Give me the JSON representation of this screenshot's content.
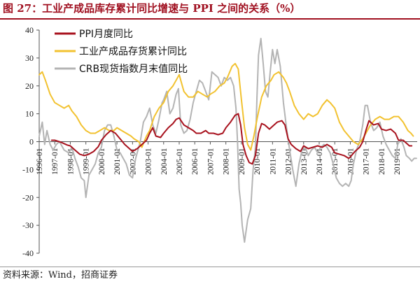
{
  "figure": {
    "title": "图 27：工业产成品库存累计同比增速与 PPI 之间的关系（%）",
    "source": "资料来源：Wind，招商证券"
  },
  "colors": {
    "title": "#a01020",
    "ppi": "#a8121e",
    "inventory": "#f2c230",
    "crb": "#b4b4b4"
  },
  "chart_data": {
    "type": "line",
    "title": "",
    "xlabel": "",
    "ylabel": "",
    "ylim": [
      -40,
      40
    ],
    "yticks": [
      -40,
      -30,
      -20,
      -10,
      0,
      10,
      20,
      30,
      40
    ],
    "xlim": [
      1996.0,
      2020.3
    ],
    "xtick_labels": [
      "1996-01",
      "1997-01",
      "1998-01",
      "1999-01",
      "2000-01",
      "2001-01",
      "2002-01",
      "2003-01",
      "2004-01",
      "2005-01",
      "2006-01",
      "2007-01",
      "2008-01",
      "2009-01",
      "2010-01",
      "2011-01",
      "2012-01",
      "2013-01",
      "2014-01",
      "2015-01",
      "2016-01",
      "2017-01",
      "2018-01",
      "2019-01"
    ],
    "grid": false,
    "legend_position": "top-left",
    "series": [
      {
        "name": "PPI月度同比",
        "points": [
          [
            1996.8,
            0.5
          ],
          [
            1997.0,
            0.5
          ],
          [
            1997.4,
            -0.2
          ],
          [
            1997.8,
            -1.2
          ],
          [
            1998.0,
            -1.5
          ],
          [
            1998.3,
            -3
          ],
          [
            1998.6,
            -4.5
          ],
          [
            1998.9,
            -5
          ],
          [
            1999.2,
            -4.5
          ],
          [
            1999.5,
            -3.5
          ],
          [
            1999.8,
            -1.8
          ],
          [
            2000.0,
            0.5
          ],
          [
            2000.3,
            2.5
          ],
          [
            2000.6,
            4
          ],
          [
            2000.9,
            3
          ],
          [
            2001.2,
            1
          ],
          [
            2001.5,
            -1
          ],
          [
            2001.8,
            -2.5
          ],
          [
            2002.0,
            -3.5
          ],
          [
            2002.3,
            -2.5
          ],
          [
            2002.6,
            -1
          ],
          [
            2002.9,
            0.5
          ],
          [
            2003.1,
            3
          ],
          [
            2003.3,
            5
          ],
          [
            2003.5,
            2
          ],
          [
            2003.8,
            1.5
          ],
          [
            2004.0,
            3
          ],
          [
            2004.3,
            5
          ],
          [
            2004.6,
            6.5
          ],
          [
            2004.8,
            8
          ],
          [
            2005.0,
            8.5
          ],
          [
            2005.3,
            6
          ],
          [
            2005.6,
            5
          ],
          [
            2005.9,
            4
          ],
          [
            2006.1,
            3
          ],
          [
            2006.4,
            3
          ],
          [
            2006.7,
            4
          ],
          [
            2006.9,
            3
          ],
          [
            2007.2,
            3
          ],
          [
            2007.5,
            2.5
          ],
          [
            2007.8,
            3
          ],
          [
            2008.0,
            5
          ],
          [
            2008.3,
            7
          ],
          [
            2008.6,
            9.5
          ],
          [
            2008.8,
            10
          ],
          [
            2008.95,
            6
          ],
          [
            2009.1,
            -1
          ],
          [
            2009.3,
            -5
          ],
          [
            2009.5,
            -7.5
          ],
          [
            2009.7,
            -8
          ],
          [
            2009.9,
            -5
          ],
          [
            2010.1,
            3
          ],
          [
            2010.3,
            6.5
          ],
          [
            2010.5,
            6
          ],
          [
            2010.8,
            4.5
          ],
          [
            2011.0,
            5.5
          ],
          [
            2011.3,
            7
          ],
          [
            2011.6,
            7.5
          ],
          [
            2011.8,
            6
          ],
          [
            2012.0,
            1
          ],
          [
            2012.2,
            -1
          ],
          [
            2012.5,
            -2.5
          ],
          [
            2012.8,
            -3.5
          ],
          [
            2013.0,
            -1.5
          ],
          [
            2013.3,
            -2.5
          ],
          [
            2013.6,
            -2
          ],
          [
            2013.9,
            -1.5
          ],
          [
            2014.2,
            -2
          ],
          [
            2014.5,
            -1
          ],
          [
            2014.8,
            -2
          ],
          [
            2015.0,
            -4
          ],
          [
            2015.3,
            -4.5
          ],
          [
            2015.6,
            -5
          ],
          [
            2015.9,
            -6
          ],
          [
            2016.0,
            -5.5
          ],
          [
            2016.3,
            -3.5
          ],
          [
            2016.6,
            -2
          ],
          [
            2016.8,
            0
          ],
          [
            2017.0,
            4
          ],
          [
            2017.2,
            7.5
          ],
          [
            2017.5,
            6
          ],
          [
            2017.8,
            6.5
          ],
          [
            2018.0,
            4.5
          ],
          [
            2018.3,
            4
          ],
          [
            2018.6,
            4.5
          ],
          [
            2018.9,
            3
          ],
          [
            2019.1,
            0.5
          ],
          [
            2019.4,
            0.5
          ],
          [
            2019.6,
            -0.5
          ],
          [
            2019.8,
            -1.5
          ],
          [
            2019.95,
            -1.5
          ]
        ]
      },
      {
        "name": "工业产成品存货累计同比",
        "points": [
          [
            1996.0,
            24
          ],
          [
            1996.2,
            25
          ],
          [
            1996.4,
            22
          ],
          [
            1996.7,
            17
          ],
          [
            1997.0,
            14
          ],
          [
            1997.3,
            13
          ],
          [
            1997.6,
            12
          ],
          [
            1997.9,
            13
          ],
          [
            1998.1,
            11
          ],
          [
            1998.4,
            9
          ],
          [
            1998.7,
            6
          ],
          [
            1999.0,
            4
          ],
          [
            1999.3,
            3
          ],
          [
            1999.6,
            3
          ],
          [
            1999.9,
            4
          ],
          [
            2000.2,
            5
          ],
          [
            2000.5,
            4
          ],
          [
            2000.8,
            4
          ],
          [
            2001.0,
            5
          ],
          [
            2001.3,
            4
          ],
          [
            2001.6,
            3
          ],
          [
            2001.9,
            2
          ],
          [
            2002.1,
            1
          ],
          [
            2002.4,
            0
          ],
          [
            2002.6,
            -2
          ],
          [
            2002.9,
            2
          ],
          [
            2003.1,
            4
          ],
          [
            2003.4,
            9
          ],
          [
            2003.7,
            12
          ],
          [
            2004.0,
            14
          ],
          [
            2004.3,
            18
          ],
          [
            2004.6,
            20
          ],
          [
            2004.9,
            23
          ],
          [
            2005.0,
            24
          ],
          [
            2005.3,
            18
          ],
          [
            2005.6,
            16
          ],
          [
            2005.9,
            16
          ],
          [
            2006.2,
            18
          ],
          [
            2006.5,
            17
          ],
          [
            2006.8,
            16
          ],
          [
            2007.0,
            17
          ],
          [
            2007.3,
            18
          ],
          [
            2007.6,
            20
          ],
          [
            2007.9,
            21
          ],
          [
            2008.1,
            23
          ],
          [
            2008.4,
            27
          ],
          [
            2008.6,
            28
          ],
          [
            2008.8,
            26
          ],
          [
            2009.0,
            15
          ],
          [
            2009.2,
            5
          ],
          [
            2009.4,
            -1
          ],
          [
            2009.6,
            -3
          ],
          [
            2009.8,
            2
          ],
          [
            2010.0,
            8
          ],
          [
            2010.3,
            16
          ],
          [
            2010.6,
            20
          ],
          [
            2010.9,
            22
          ],
          [
            2011.1,
            24
          ],
          [
            2011.4,
            25
          ],
          [
            2011.7,
            23
          ],
          [
            2011.9,
            21
          ],
          [
            2012.1,
            18
          ],
          [
            2012.4,
            13
          ],
          [
            2012.7,
            10
          ],
          [
            2013.0,
            8
          ],
          [
            2013.3,
            10
          ],
          [
            2013.6,
            9
          ],
          [
            2013.9,
            10
          ],
          [
            2014.2,
            13
          ],
          [
            2014.5,
            15
          ],
          [
            2014.7,
            14
          ],
          [
            2015.0,
            12
          ],
          [
            2015.3,
            7
          ],
          [
            2015.6,
            4
          ],
          [
            2015.9,
            2
          ],
          [
            2016.2,
            0
          ],
          [
            2016.5,
            -1
          ],
          [
            2016.8,
            1
          ],
          [
            2017.0,
            3
          ],
          [
            2017.3,
            6
          ],
          [
            2017.6,
            8
          ],
          [
            2017.9,
            9
          ],
          [
            2018.2,
            8
          ],
          [
            2018.5,
            8
          ],
          [
            2018.8,
            9
          ],
          [
            2019.1,
            9
          ],
          [
            2019.4,
            7
          ],
          [
            2019.7,
            4
          ],
          [
            2019.9,
            3
          ],
          [
            2020.05,
            2
          ]
        ]
      },
      {
        "name": "CRB现货指数月末值同比",
        "points": [
          [
            1996.0,
            2
          ],
          [
            1996.2,
            7
          ],
          [
            1996.35,
            -1
          ],
          [
            1996.5,
            4
          ],
          [
            1996.7,
            -1
          ],
          [
            1996.9,
            -3
          ],
          [
            1997.1,
            -1
          ],
          [
            1997.3,
            0
          ],
          [
            1997.6,
            -3
          ],
          [
            1997.9,
            -4
          ],
          [
            1998.1,
            -2
          ],
          [
            1998.3,
            -6
          ],
          [
            1998.5,
            -9
          ],
          [
            1998.7,
            -13
          ],
          [
            1998.9,
            -14
          ],
          [
            1999.0,
            -20
          ],
          [
            1999.2,
            -12
          ],
          [
            1999.4,
            -10
          ],
          [
            1999.6,
            -8
          ],
          [
            1999.8,
            -4
          ],
          [
            2000.0,
            -2
          ],
          [
            2000.2,
            4
          ],
          [
            2000.4,
            6
          ],
          [
            2000.6,
            6
          ],
          [
            2000.8,
            2
          ],
          [
            2001.0,
            -3
          ],
          [
            2001.2,
            -4
          ],
          [
            2001.4,
            -6
          ],
          [
            2001.6,
            -8
          ],
          [
            2001.8,
            -12
          ],
          [
            2002.0,
            -13
          ],
          [
            2002.2,
            -6
          ],
          [
            2002.5,
            0
          ],
          [
            2002.7,
            7
          ],
          [
            2002.9,
            9
          ],
          [
            2003.1,
            12
          ],
          [
            2003.3,
            6
          ],
          [
            2003.5,
            3
          ],
          [
            2003.7,
            8
          ],
          [
            2003.9,
            14
          ],
          [
            2004.0,
            15
          ],
          [
            2004.2,
            18
          ],
          [
            2004.4,
            10
          ],
          [
            2004.6,
            12
          ],
          [
            2004.8,
            17
          ],
          [
            2004.95,
            19
          ],
          [
            2005.1,
            6
          ],
          [
            2005.3,
            3
          ],
          [
            2005.5,
            4
          ],
          [
            2005.7,
            8
          ],
          [
            2005.9,
            14
          ],
          [
            2006.1,
            18
          ],
          [
            2006.3,
            22
          ],
          [
            2006.5,
            21
          ],
          [
            2006.7,
            18
          ],
          [
            2006.9,
            15
          ],
          [
            2007.1,
            25
          ],
          [
            2007.3,
            24
          ],
          [
            2007.5,
            23
          ],
          [
            2007.7,
            20
          ],
          [
            2007.9,
            23
          ],
          [
            2008.1,
            22
          ],
          [
            2008.3,
            23
          ],
          [
            2008.5,
            20
          ],
          [
            2008.65,
            12
          ],
          [
            2008.75,
            0
          ],
          [
            2008.85,
            -17
          ],
          [
            2008.95,
            -22
          ],
          [
            2009.05,
            -30
          ],
          [
            2009.2,
            -36
          ],
          [
            2009.4,
            -28
          ],
          [
            2009.6,
            -24
          ],
          [
            2009.75,
            -10
          ],
          [
            2009.9,
            -2
          ],
          [
            2010.0,
            16
          ],
          [
            2010.1,
            31
          ],
          [
            2010.25,
            37
          ],
          [
            2010.4,
            28
          ],
          [
            2010.55,
            18
          ],
          [
            2010.7,
            16
          ],
          [
            2010.85,
            25
          ],
          [
            2011.0,
            33
          ],
          [
            2011.15,
            28
          ],
          [
            2011.3,
            33
          ],
          [
            2011.5,
            27
          ],
          [
            2011.7,
            14
          ],
          [
            2011.9,
            5
          ],
          [
            2012.1,
            -3
          ],
          [
            2012.3,
            -10
          ],
          [
            2012.5,
            -16
          ],
          [
            2012.7,
            -8
          ],
          [
            2012.9,
            -3
          ],
          [
            2013.1,
            -2
          ],
          [
            2013.3,
            -5
          ],
          [
            2013.5,
            -3
          ],
          [
            2013.7,
            -2
          ],
          [
            2013.9,
            -4
          ],
          [
            2014.1,
            -2
          ],
          [
            2014.3,
            -1
          ],
          [
            2014.5,
            -2
          ],
          [
            2014.7,
            -4
          ],
          [
            2014.9,
            -8
          ],
          [
            2015.1,
            -13
          ],
          [
            2015.3,
            -15
          ],
          [
            2015.5,
            -16
          ],
          [
            2015.7,
            -15
          ],
          [
            2015.9,
            -16
          ],
          [
            2016.05,
            -14
          ],
          [
            2016.2,
            -8
          ],
          [
            2016.4,
            -3
          ],
          [
            2016.6,
            0
          ],
          [
            2016.8,
            6
          ],
          [
            2016.95,
            13
          ],
          [
            2017.1,
            13
          ],
          [
            2017.3,
            7
          ],
          [
            2017.5,
            4
          ],
          [
            2017.7,
            5
          ],
          [
            2017.9,
            7
          ],
          [
            2018.1,
            2
          ],
          [
            2018.3,
            -1
          ],
          [
            2018.5,
            -3
          ],
          [
            2018.7,
            -5
          ],
          [
            2018.9,
            -6
          ],
          [
            2019.05,
            -1
          ],
          [
            2019.25,
            1
          ],
          [
            2019.45,
            -2
          ],
          [
            2019.6,
            -5
          ],
          [
            2019.8,
            -6
          ],
          [
            2019.95,
            -7
          ],
          [
            2020.1,
            -6
          ],
          [
            2020.25,
            -6
          ]
        ]
      }
    ]
  }
}
